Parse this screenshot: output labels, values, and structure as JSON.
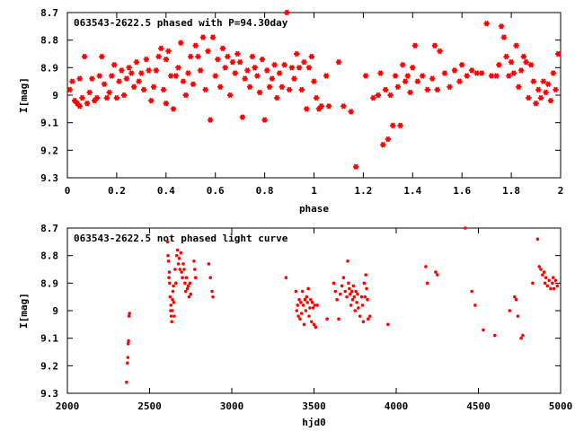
{
  "chart_data": [
    {
      "type": "scatter",
      "title": "063543-2622.5 phased with P=94.30day",
      "xlabel": "phase",
      "ylabel": "I[mag]",
      "xlim": [
        0,
        2
      ],
      "ylim": [
        9.3,
        8.7
      ],
      "y_inverted": true,
      "xticks": [
        "0",
        "0.2",
        "0.4",
        "0.6",
        "0.8",
        "1",
        "1.2",
        "1.4",
        "1.6",
        "1.8",
        "2"
      ],
      "yticks": [
        "8.7",
        "8.8",
        "8.9",
        "9",
        "9.1",
        "9.2",
        "9.3"
      ],
      "marker": "star",
      "color": "#ff0000",
      "grid": false,
      "points": [
        [
          0.01,
          8.98
        ],
        [
          0.02,
          8.95
        ],
        [
          0.03,
          9.02
        ],
        [
          0.04,
          9.03
        ],
        [
          0.05,
          8.94
        ],
        [
          0.05,
          9.04
        ],
        [
          0.06,
          9.01
        ],
        [
          0.07,
          8.86
        ],
        [
          0.08,
          9.03
        ],
        [
          0.09,
          8.99
        ],
        [
          0.1,
          8.94
        ],
        [
          0.11,
          9.02
        ],
        [
          0.12,
          9.01
        ],
        [
          0.13,
          8.93
        ],
        [
          0.14,
          8.86
        ],
        [
          0.15,
          8.96
        ],
        [
          0.16,
          9.01
        ],
        [
          0.17,
          8.99
        ],
        [
          0.18,
          8.93
        ],
        [
          0.19,
          8.89
        ],
        [
          0.2,
          9.01
        ],
        [
          0.21,
          8.95
        ],
        [
          0.22,
          8.91
        ],
        [
          0.23,
          9.0
        ],
        [
          0.24,
          8.94
        ],
        [
          0.25,
          8.9
        ],
        [
          0.26,
          8.92
        ],
        [
          0.27,
          8.97
        ],
        [
          0.28,
          8.88
        ],
        [
          0.29,
          8.95
        ],
        [
          0.3,
          8.92
        ],
        [
          0.31,
          8.98
        ],
        [
          0.32,
          8.87
        ],
        [
          0.33,
          8.91
        ],
        [
          0.34,
          9.02
        ],
        [
          0.35,
          8.97
        ],
        [
          0.36,
          8.91
        ],
        [
          0.37,
          8.86
        ],
        [
          0.38,
          8.83
        ],
        [
          0.39,
          8.98
        ],
        [
          0.4,
          8.87
        ],
        [
          0.4,
          9.03
        ],
        [
          0.41,
          8.84
        ],
        [
          0.42,
          8.93
        ],
        [
          0.43,
          9.05
        ],
        [
          0.44,
          8.93
        ],
        [
          0.45,
          8.9
        ],
        [
          0.46,
          8.81
        ],
        [
          0.47,
          8.95
        ],
        [
          0.48,
          9.0
        ],
        [
          0.49,
          8.92
        ],
        [
          0.5,
          8.86
        ],
        [
          0.51,
          8.96
        ],
        [
          0.52,
          8.82
        ],
        [
          0.53,
          8.86
        ],
        [
          0.54,
          8.91
        ],
        [
          0.55,
          8.79
        ],
        [
          0.56,
          8.98
        ],
        [
          0.57,
          8.84
        ],
        [
          0.58,
          9.09
        ],
        [
          0.59,
          8.79
        ],
        [
          0.6,
          8.93
        ],
        [
          0.61,
          8.87
        ],
        [
          0.62,
          8.97
        ],
        [
          0.63,
          8.83
        ],
        [
          0.64,
          8.9
        ],
        [
          0.65,
          8.86
        ],
        [
          0.66,
          9.0
        ],
        [
          0.67,
          8.88
        ],
        [
          0.68,
          8.92
        ],
        [
          0.69,
          8.85
        ],
        [
          0.7,
          8.88
        ],
        [
          0.71,
          9.08
        ],
        [
          0.72,
          8.94
        ],
        [
          0.73,
          8.91
        ],
        [
          0.74,
          8.97
        ],
        [
          0.75,
          8.86
        ],
        [
          0.76,
          8.9
        ],
        [
          0.77,
          8.93
        ],
        [
          0.78,
          8.99
        ],
        [
          0.79,
          8.87
        ],
        [
          0.8,
          9.09
        ],
        [
          0.81,
          8.91
        ],
        [
          0.82,
          8.97
        ],
        [
          0.83,
          8.94
        ],
        [
          0.84,
          8.89
        ],
        [
          0.85,
          9.01
        ],
        [
          0.86,
          8.92
        ],
        [
          0.87,
          8.97
        ],
        [
          0.88,
          8.89
        ],
        [
          0.89,
          8.7
        ],
        [
          0.9,
          8.98
        ],
        [
          0.91,
          8.9
        ],
        [
          0.92,
          8.94
        ],
        [
          0.93,
          8.85
        ],
        [
          0.94,
          8.9
        ],
        [
          0.95,
          8.98
        ],
        [
          0.96,
          8.88
        ],
        [
          0.97,
          9.05
        ],
        [
          0.98,
          8.9
        ],
        [
          0.99,
          8.86
        ],
        [
          1.0,
          8.95
        ],
        [
          1.01,
          9.01
        ],
        [
          1.02,
          9.05
        ],
        [
          1.03,
          9.04
        ],
        [
          1.05,
          8.93
        ],
        [
          1.06,
          9.04
        ],
        [
          1.1,
          8.88
        ],
        [
          1.12,
          9.04
        ],
        [
          1.15,
          9.06
        ],
        [
          1.17,
          9.26
        ],
        [
          1.21,
          8.93
        ],
        [
          1.24,
          9.01
        ],
        [
          1.26,
          9.0
        ],
        [
          1.27,
          8.92
        ],
        [
          1.28,
          9.18
        ],
        [
          1.29,
          8.98
        ],
        [
          1.3,
          9.16
        ],
        [
          1.31,
          9.0
        ],
        [
          1.32,
          9.11
        ],
        [
          1.33,
          8.93
        ],
        [
          1.34,
          8.97
        ],
        [
          1.35,
          9.11
        ],
        [
          1.36,
          8.89
        ],
        [
          1.37,
          8.95
        ],
        [
          1.38,
          8.93
        ],
        [
          1.39,
          8.99
        ],
        [
          1.4,
          8.9
        ],
        [
          1.41,
          8.82
        ],
        [
          1.42,
          8.95
        ],
        [
          1.44,
          8.93
        ],
        [
          1.46,
          8.98
        ],
        [
          1.48,
          8.94
        ],
        [
          1.49,
          8.82
        ],
        [
          1.5,
          8.98
        ],
        [
          1.51,
          8.84
        ],
        [
          1.53,
          8.92
        ],
        [
          1.55,
          8.97
        ],
        [
          1.57,
          8.91
        ],
        [
          1.59,
          8.95
        ],
        [
          1.6,
          8.89
        ],
        [
          1.62,
          8.93
        ],
        [
          1.64,
          8.91
        ],
        [
          1.66,
          8.92
        ],
        [
          1.68,
          8.92
        ],
        [
          1.7,
          8.74
        ],
        [
          1.72,
          8.93
        ],
        [
          1.74,
          8.93
        ],
        [
          1.75,
          8.89
        ],
        [
          1.76,
          8.75
        ],
        [
          1.77,
          8.79
        ],
        [
          1.78,
          8.86
        ],
        [
          1.79,
          8.93
        ],
        [
          1.8,
          8.88
        ],
        [
          1.81,
          8.92
        ],
        [
          1.82,
          8.82
        ],
        [
          1.83,
          8.97
        ],
        [
          1.84,
          8.91
        ],
        [
          1.85,
          8.86
        ],
        [
          1.86,
          8.88
        ],
        [
          1.87,
          9.01
        ],
        [
          1.88,
          8.89
        ],
        [
          1.89,
          8.95
        ],
        [
          1.9,
          9.03
        ],
        [
          1.91,
          8.98
        ],
        [
          1.92,
          9.01
        ],
        [
          1.93,
          8.95
        ],
        [
          1.94,
          8.99
        ],
        [
          1.95,
          8.96
        ],
        [
          1.96,
          9.02
        ],
        [
          1.97,
          8.92
        ],
        [
          1.98,
          8.98
        ],
        [
          1.99,
          8.85
        ]
      ]
    },
    {
      "type": "scatter",
      "title": "063543-2622.5 not phased light curve",
      "xlabel": "hjd0",
      "ylabel": "I[mag]",
      "xlim": [
        2000,
        5000
      ],
      "ylim": [
        9.3,
        8.7
      ],
      "y_inverted": true,
      "xticks": [
        "2000",
        "2500",
        "3000",
        "3500",
        "4000",
        "4500",
        "5000"
      ],
      "yticks": [
        "8.7",
        "8.8",
        "8.9",
        "9",
        "9.1",
        "9.2",
        "9.3"
      ],
      "marker": "dot",
      "color": "#ff0000",
      "grid": false,
      "points": [
        [
          2360,
          9.26
        ],
        [
          2365,
          9.19
        ],
        [
          2368,
          9.17
        ],
        [
          2370,
          9.12
        ],
        [
          2372,
          9.11
        ],
        [
          2375,
          9.02
        ],
        [
          2378,
          9.01
        ],
        [
          2610,
          8.75
        ],
        [
          2612,
          8.8
        ],
        [
          2615,
          8.82
        ],
        [
          2618,
          8.88
        ],
        [
          2620,
          8.86
        ],
        [
          2622,
          8.9
        ],
        [
          2625,
          8.95
        ],
        [
          2628,
          9.0
        ],
        [
          2630,
          8.98
        ],
        [
          2632,
          9.02
        ],
        [
          2635,
          9.04
        ],
        [
          2638,
          9.0
        ],
        [
          2640,
          8.96
        ],
        [
          2642,
          8.93
        ],
        [
          2645,
          8.91
        ],
        [
          2648,
          8.97
        ],
        [
          2650,
          9.02
        ],
        [
          2655,
          8.85
        ],
        [
          2660,
          8.9
        ],
        [
          2665,
          8.8
        ],
        [
          2670,
          8.78
        ],
        [
          2675,
          8.83
        ],
        [
          2680,
          8.81
        ],
        [
          2685,
          8.85
        ],
        [
          2690,
          8.79
        ],
        [
          2695,
          8.86
        ],
        [
          2700,
          8.88
        ],
        [
          2705,
          8.83
        ],
        [
          2710,
          8.85
        ],
        [
          2715,
          8.9
        ],
        [
          2720,
          8.93
        ],
        [
          2725,
          8.88
        ],
        [
          2730,
          8.92
        ],
        [
          2735,
          8.91
        ],
        [
          2740,
          8.95
        ],
        [
          2745,
          8.9
        ],
        [
          2750,
          8.94
        ],
        [
          2770,
          8.82
        ],
        [
          2775,
          8.85
        ],
        [
          2780,
          8.88
        ],
        [
          2860,
          8.83
        ],
        [
          2870,
          8.88
        ],
        [
          2880,
          8.93
        ],
        [
          2885,
          8.95
        ],
        [
          3330,
          8.88
        ],
        [
          3390,
          8.93
        ],
        [
          3395,
          9.0
        ],
        [
          3400,
          8.98
        ],
        [
          3405,
          9.02
        ],
        [
          3410,
          8.96
        ],
        [
          3415,
          9.03
        ],
        [
          3420,
          8.97
        ],
        [
          3425,
          9.01
        ],
        [
          3430,
          8.93
        ],
        [
          3435,
          8.98
        ],
        [
          3440,
          9.05
        ],
        [
          3445,
          8.96
        ],
        [
          3450,
          9.0
        ],
        [
          3455,
          8.95
        ],
        [
          3460,
          8.97
        ],
        [
          3465,
          8.92
        ],
        [
          3470,
          9.02
        ],
        [
          3475,
          8.99
        ],
        [
          3480,
          8.96
        ],
        [
          3485,
          9.04
        ],
        [
          3490,
          8.97
        ],
        [
          3495,
          8.99
        ],
        [
          3500,
          9.05
        ],
        [
          3505,
          8.98
        ],
        [
          3510,
          9.06
        ],
        [
          3520,
          8.98
        ],
        [
          3580,
          9.03
        ],
        [
          3620,
          8.9
        ],
        [
          3630,
          8.93
        ],
        [
          3640,
          8.96
        ],
        [
          3650,
          9.03
        ],
        [
          3660,
          8.94
        ],
        [
          3670,
          8.91
        ],
        [
          3680,
          8.88
        ],
        [
          3690,
          8.93
        ],
        [
          3700,
          8.95
        ],
        [
          3705,
          8.82
        ],
        [
          3710,
          8.9
        ],
        [
          3715,
          8.92
        ],
        [
          3720,
          8.94
        ],
        [
          3725,
          8.98
        ],
        [
          3730,
          8.93
        ],
        [
          3735,
          8.96
        ],
        [
          3740,
          8.91
        ],
        [
          3745,
          8.95
        ],
        [
          3750,
          9.0
        ],
        [
          3755,
          8.93
        ],
        [
          3760,
          8.97
        ],
        [
          3765,
          8.94
        ],
        [
          3770,
          8.99
        ],
        [
          3780,
          9.02
        ],
        [
          3790,
          8.95
        ],
        [
          3795,
          8.98
        ],
        [
          3800,
          9.04
        ],
        [
          3805,
          8.9
        ],
        [
          3810,
          8.95
        ],
        [
          3815,
          8.87
        ],
        [
          3820,
          8.92
        ],
        [
          3825,
          8.96
        ],
        [
          3830,
          9.03
        ],
        [
          3840,
          9.02
        ],
        [
          3950,
          9.05
        ],
        [
          4180,
          8.84
        ],
        [
          4190,
          8.9
        ],
        [
          4240,
          8.86
        ],
        [
          4250,
          8.87
        ],
        [
          4420,
          8.7
        ],
        [
          4460,
          8.93
        ],
        [
          4480,
          8.98
        ],
        [
          4530,
          9.07
        ],
        [
          4600,
          9.09
        ],
        [
          4690,
          9.0
        ],
        [
          4720,
          8.95
        ],
        [
          4730,
          8.96
        ],
        [
          4740,
          9.02
        ],
        [
          4760,
          9.1
        ],
        [
          4770,
          9.09
        ],
        [
          4830,
          8.9
        ],
        [
          4860,
          8.74
        ],
        [
          4870,
          8.84
        ],
        [
          4880,
          8.85
        ],
        [
          4890,
          8.87
        ],
        [
          4900,
          8.86
        ],
        [
          4905,
          8.9
        ],
        [
          4910,
          8.88
        ],
        [
          4920,
          8.91
        ],
        [
          4930,
          8.89
        ],
        [
          4940,
          8.92
        ],
        [
          4950,
          8.9
        ],
        [
          4955,
          8.88
        ],
        [
          4960,
          8.92
        ],
        [
          4970,
          8.89
        ],
        [
          4980,
          8.91
        ]
      ]
    }
  ]
}
